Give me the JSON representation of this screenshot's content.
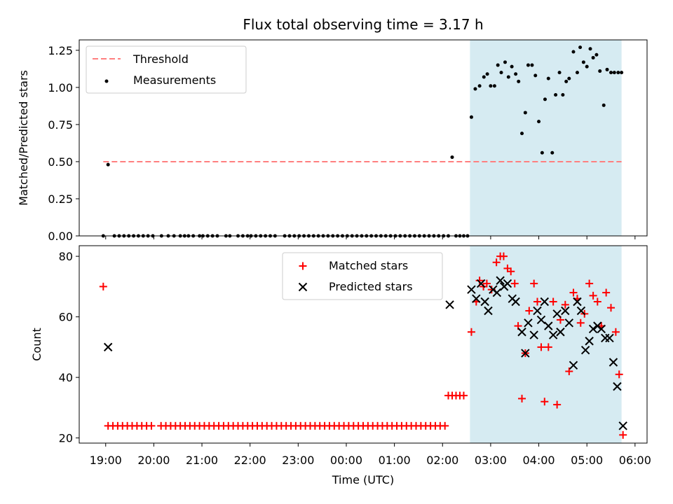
{
  "title": "Flux total observing time = 3.17 h",
  "colors": {
    "threshold": "#ff7f7f",
    "measurement": "#000000",
    "matched": "#ff0000",
    "predicted": "#000000",
    "span": "#add8e6"
  },
  "chart_data": [
    {
      "type": "scatter",
      "ylabel": "Matched/Predicted stars",
      "ylim": [
        0,
        1.32
      ],
      "yticks": [
        0.0,
        0.25,
        0.5,
        0.75,
        1.0,
        1.25
      ],
      "ytick_labels": [
        "0.00",
        "0.25",
        "0.50",
        "0.75",
        "1.00",
        "1.25"
      ],
      "xlim": [
        18.45,
        30.25
      ],
      "shaded_span": [
        26.57,
        29.72
      ],
      "threshold": {
        "label": "Threshold",
        "value": 0.5,
        "x_range": [
          18.95,
          29.72
        ],
        "style": "dashed"
      },
      "legend": [
        "Threshold",
        "Measurements"
      ],
      "series": [
        {
          "name": "Measurements",
          "x": [
            18.95,
            19.05,
            19.18,
            19.28,
            19.38,
            19.48,
            19.58,
            19.68,
            19.78,
            19.88,
            19.98,
            20.16,
            20.3,
            20.42,
            20.55,
            20.64,
            20.72,
            20.82,
            20.95,
            21.02,
            21.12,
            21.22,
            21.32,
            21.5,
            21.58,
            21.75,
            21.85,
            21.95,
            22.02,
            22.12,
            22.22,
            22.32,
            22.42,
            22.52,
            22.72,
            22.82,
            22.92,
            23.02,
            23.12,
            23.22,
            23.32,
            23.42,
            23.52,
            23.62,
            23.72,
            23.82,
            23.92,
            24.02,
            24.12,
            24.22,
            24.32,
            24.42,
            24.52,
            24.62,
            24.72,
            24.82,
            24.92,
            25.02,
            25.12,
            25.22,
            25.32,
            25.42,
            25.52,
            25.62,
            25.72,
            25.82,
            25.92,
            26.02,
            26.12,
            26.2,
            26.28,
            26.36,
            26.44,
            26.52,
            26.6,
            26.68,
            26.77,
            26.86,
            26.93,
            27.0,
            27.08,
            27.15,
            27.22,
            27.3,
            27.37,
            27.44,
            27.52,
            27.58,
            27.65,
            27.72,
            27.78,
            27.86,
            27.93,
            28.0,
            28.07,
            28.13,
            28.2,
            28.28,
            28.35,
            28.43,
            28.5,
            28.57,
            28.63,
            28.72,
            28.8,
            28.86,
            28.93,
            29.0,
            29.07,
            29.13,
            29.2,
            29.27,
            29.35,
            29.42,
            29.5,
            29.57,
            29.65,
            29.72
          ],
          "y": [
            0.0,
            0.48,
            0.0,
            0.0,
            0.0,
            0.0,
            0.0,
            0.0,
            0.0,
            0.0,
            0.0,
            0.0,
            0.0,
            0.0,
            0.0,
            0.0,
            0.0,
            0.0,
            0.0,
            0.0,
            0.0,
            0.0,
            0.0,
            0.0,
            0.0,
            0.0,
            0.0,
            0.0,
            0.0,
            0.0,
            0.0,
            0.0,
            0.0,
            0.0,
            0.0,
            0.0,
            0.0,
            0.0,
            0.0,
            0.0,
            0.0,
            0.0,
            0.0,
            0.0,
            0.0,
            0.0,
            0.0,
            0.0,
            0.0,
            0.0,
            0.0,
            0.0,
            0.0,
            0.0,
            0.0,
            0.0,
            0.0,
            0.0,
            0.0,
            0.0,
            0.0,
            0.0,
            0.0,
            0.0,
            0.0,
            0.0,
            0.0,
            0.0,
            0.0,
            0.53,
            0.0,
            0.0,
            0.0,
            0.0,
            0.8,
            0.99,
            1.01,
            1.07,
            1.09,
            1.01,
            1.01,
            1.15,
            1.1,
            1.17,
            1.07,
            1.14,
            1.09,
            1.04,
            0.69,
            0.83,
            1.15,
            1.15,
            1.08,
            0.77,
            0.56,
            0.92,
            1.06,
            0.56,
            0.95,
            1.1,
            0.95,
            1.04,
            1.06,
            1.24,
            1.1,
            1.27,
            1.17,
            1.14,
            1.26,
            1.2,
            1.22,
            1.11,
            0.88,
            1.12,
            1.1,
            1.1,
            1.1,
            1.1
          ]
        }
      ]
    },
    {
      "type": "scatter",
      "ylabel": "Count",
      "xlabel": "Time (UTC)",
      "ylim": [
        18.3,
        83.5
      ],
      "yticks": [
        20,
        40,
        60,
        80
      ],
      "ytick_labels": [
        "20",
        "40",
        "60",
        "80"
      ],
      "xlim": [
        18.45,
        30.25
      ],
      "xticks": [
        19,
        20,
        21,
        22,
        23,
        24,
        25,
        26,
        27,
        28,
        29,
        30
      ],
      "xtick_labels": [
        "19:00",
        "20:00",
        "21:00",
        "22:00",
        "23:00",
        "00:00",
        "01:00",
        "02:00",
        "03:00",
        "04:00",
        "05:00",
        "06:00"
      ],
      "shaded_span": [
        26.57,
        29.72
      ],
      "legend": [
        "Matched stars",
        "Predicted stars"
      ],
      "series": [
        {
          "name": "Matched stars",
          "marker": "plus",
          "x": [
            18.95,
            19.05,
            19.15,
            19.25,
            19.35,
            19.45,
            19.55,
            19.65,
            19.75,
            19.85,
            19.95,
            20.15,
            20.25,
            20.35,
            20.45,
            20.55,
            20.65,
            20.75,
            20.85,
            20.95,
            21.05,
            21.15,
            21.25,
            21.35,
            21.45,
            21.55,
            21.65,
            21.75,
            21.85,
            21.95,
            22.05,
            22.15,
            22.25,
            22.35,
            22.45,
            22.55,
            22.65,
            22.75,
            22.85,
            22.95,
            23.05,
            23.15,
            23.25,
            23.35,
            23.45,
            23.55,
            23.65,
            23.75,
            23.85,
            23.95,
            24.05,
            24.15,
            24.25,
            24.35,
            24.45,
            24.55,
            24.65,
            24.75,
            24.85,
            24.95,
            25.05,
            25.15,
            25.25,
            25.35,
            25.45,
            25.55,
            25.65,
            25.75,
            25.85,
            25.95,
            26.05,
            26.12,
            26.2,
            26.28,
            26.36,
            26.44,
            26.6,
            26.7,
            26.77,
            26.85,
            26.92,
            27.02,
            27.12,
            27.2,
            27.27,
            27.35,
            27.42,
            27.5,
            27.57,
            27.65,
            27.72,
            27.8,
            27.9,
            27.97,
            28.05,
            28.12,
            28.2,
            28.3,
            28.38,
            28.45,
            28.55,
            28.63,
            28.72,
            28.8,
            28.87,
            28.95,
            29.05,
            29.13,
            29.22,
            29.3,
            29.4,
            29.5,
            29.6,
            29.67,
            29.75
          ],
          "y": [
            70,
            24,
            24,
            24,
            24,
            24,
            24,
            24,
            24,
            24,
            24,
            24,
            24,
            24,
            24,
            24,
            24,
            24,
            24,
            24,
            24,
            24,
            24,
            24,
            24,
            24,
            24,
            24,
            24,
            24,
            24,
            24,
            24,
            24,
            24,
            24,
            24,
            24,
            24,
            24,
            24,
            24,
            24,
            24,
            24,
            24,
            24,
            24,
            24,
            24,
            24,
            24,
            24,
            24,
            24,
            24,
            24,
            24,
            24,
            24,
            24,
            24,
            24,
            24,
            24,
            24,
            24,
            24,
            24,
            24,
            24,
            34,
            34,
            34,
            34,
            34,
            55,
            65,
            72,
            70,
            71,
            69,
            78,
            80,
            80,
            76,
            75,
            71,
            57,
            33,
            48,
            62,
            71,
            65,
            50,
            32,
            50,
            65,
            31,
            59,
            64,
            42,
            68,
            66,
            58,
            61,
            71,
            67,
            65,
            57,
            68,
            63,
            55,
            41,
            21
          ]
        },
        {
          "name": "Predicted stars",
          "marker": "x",
          "x": [
            19.05,
            26.15,
            26.6,
            26.7,
            26.8,
            26.88,
            26.95,
            27.05,
            27.13,
            27.2,
            27.28,
            27.35,
            27.45,
            27.52,
            27.65,
            27.72,
            27.78,
            27.9,
            27.97,
            28.05,
            28.12,
            28.2,
            28.3,
            28.38,
            28.45,
            28.55,
            28.63,
            28.72,
            28.8,
            28.88,
            28.97,
            29.05,
            29.13,
            29.22,
            29.3,
            29.38,
            29.47,
            29.55,
            29.63,
            29.75
          ],
          "y": [
            50,
            64,
            69,
            66,
            71,
            65,
            62,
            69,
            68,
            72,
            70,
            71,
            66,
            65,
            55,
            48,
            58,
            54,
            62,
            59,
            65,
            57,
            54,
            61,
            55,
            62,
            58,
            44,
            65,
            62,
            49,
            52,
            56,
            57,
            56,
            53,
            53,
            45,
            37,
            24
          ]
        }
      ]
    }
  ]
}
